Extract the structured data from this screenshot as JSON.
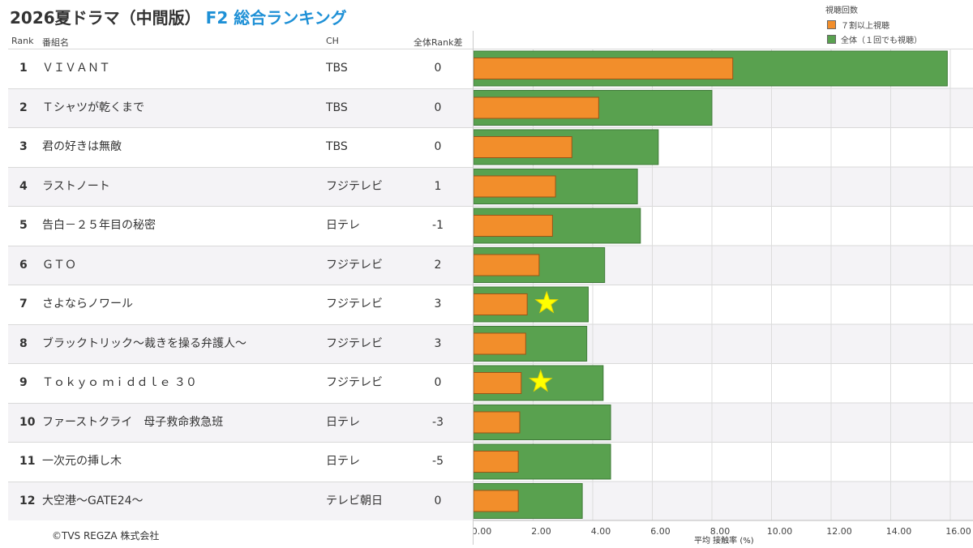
{
  "header": {
    "title": "2026夏ドラマ（中間版）",
    "subtitle": "F2 総合ランキング",
    "col_rank": "Rank",
    "col_program": "番組名",
    "col_ch": "CH",
    "col_diff": "全体Rank差"
  },
  "legend": {
    "title": "視聴回数",
    "items": [
      {
        "label": "７割以上視聴",
        "color": "#f28e2b"
      },
      {
        "label": "全体（１回でも視聴）",
        "color": "#59a14f"
      }
    ]
  },
  "copyright": "©TVS REGZA 株式会社",
  "chart_data": {
    "type": "bar",
    "orientation": "horizontal",
    "xlabel": "平均 接触率 (%)",
    "xlim": [
      0,
      16
    ],
    "xticks": [
      "0.00",
      "2.00",
      "4.00",
      "6.00",
      "8.00",
      "10.00",
      "12.00",
      "14.00",
      "16.00"
    ],
    "grid": true,
    "legend_position": "top-right",
    "colors": {
      "all": "#59a14f",
      "seventy": "#f28e2b",
      "star": "#ffff00"
    },
    "rows": [
      {
        "rank": "1",
        "program": "ＶＩＶＡＮＴ",
        "ch": "TBS",
        "diff": "0",
        "all": 15.9,
        "seventy": 8.7,
        "star": false
      },
      {
        "rank": "2",
        "program": "Ｔシャツが乾くまで",
        "ch": "TBS",
        "diff": "0",
        "all": 8.0,
        "seventy": 4.2,
        "star": false
      },
      {
        "rank": "3",
        "program": "君の好きは無敵",
        "ch": "TBS",
        "diff": "0",
        "all": 6.2,
        "seventy": 3.3,
        "star": false
      },
      {
        "rank": "4",
        "program": "ラストノート",
        "ch": "フジテレビ",
        "diff": "1",
        "all": 5.5,
        "seventy": 2.75,
        "star": false
      },
      {
        "rank": "5",
        "program": "告白－２５年目の秘密",
        "ch": "日テレ",
        "diff": "-1",
        "all": 5.6,
        "seventy": 2.65,
        "star": false
      },
      {
        "rank": "6",
        "program": "ＧＴＯ",
        "ch": "フジテレビ",
        "diff": "2",
        "all": 4.4,
        "seventy": 2.2,
        "star": false
      },
      {
        "rank": "7",
        "program": "さよならノワール",
        "ch": "フジテレビ",
        "diff": "3",
        "all": 3.85,
        "seventy": 1.8,
        "star": true
      },
      {
        "rank": "8",
        "program": "ブラックトリック～裁きを操る弁護人～",
        "ch": "フジテレビ",
        "diff": "3",
        "all": 3.8,
        "seventy": 1.75,
        "star": false
      },
      {
        "rank": "9",
        "program": "Ｔｏｋｙｏ ｍｉｄｄｌｅ ３０",
        "ch": "フジテレビ",
        "diff": "0",
        "all": 4.35,
        "seventy": 1.6,
        "star": true
      },
      {
        "rank": "10",
        "program": "ファーストクライ　母子救命救急班",
        "ch": "日テレ",
        "diff": "-3",
        "all": 4.6,
        "seventy": 1.55,
        "star": false
      },
      {
        "rank": "11",
        "program": "一次元の挿し木",
        "ch": "日テレ",
        "diff": "-5",
        "all": 4.6,
        "seventy": 1.5,
        "star": false
      },
      {
        "rank": "12",
        "program": "大空港～GATE24～",
        "ch": "テレビ朝日",
        "diff": "0",
        "all": 3.65,
        "seventy": 1.5,
        "star": false
      }
    ]
  }
}
